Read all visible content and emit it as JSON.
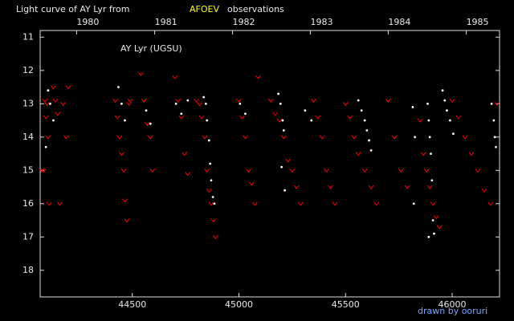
{
  "chart_data": {
    "type": "scatter",
    "title": "Light curve of AY Lyr from",
    "title_source": "AFOEV",
    "title_suffix": "observations",
    "annotation": "AY Lyr (UGSU)",
    "credit": "drawn by ooruri",
    "xlim": [
      44068,
      46222
    ],
    "ylim": [
      18.8,
      10.8
    ],
    "xticks": [
      44500,
      45000,
      45500,
      46000
    ],
    "yticks": [
      11,
      12,
      13,
      14,
      15,
      16,
      17,
      18
    ],
    "x2ticks": [
      {
        "value": 44239,
        "label": "1980"
      },
      {
        "value": 44605,
        "label": "1981"
      },
      {
        "value": 44970,
        "label": "1982"
      },
      {
        "value": 45335,
        "label": "1983"
      },
      {
        "value": 45700,
        "label": "1984"
      },
      {
        "value": 46066,
        "label": "1985"
      }
    ],
    "series": [
      {
        "color": "#ff0000",
        "marker": "v",
        "x": [
          44075,
          44085,
          44090,
          44095,
          44100,
          44105,
          44110,
          44130,
          44140,
          44150,
          44160,
          44175,
          44190,
          44200,
          44420,
          44430,
          44440,
          44450,
          44460,
          44465,
          44475,
          44485,
          44490,
          44540,
          44555,
          44570,
          44585,
          44595,
          44700,
          44715,
          44730,
          44745,
          44760,
          44800,
          44815,
          44825,
          44840,
          44850,
          44860,
          44870,
          44880,
          44890,
          45000,
          45015,
          45030,
          45045,
          45060,
          45075,
          45090,
          45150,
          45170,
          45190,
          45210,
          45230,
          45250,
          45270,
          45290,
          45350,
          45370,
          45390,
          45410,
          45430,
          45450,
          45500,
          45520,
          45540,
          45560,
          45590,
          45620,
          45645,
          45700,
          45730,
          45760,
          45790,
          45850,
          45865,
          45880,
          45895,
          45910,
          45925,
          45940,
          46000,
          46030,
          46060,
          46090,
          46120,
          46150,
          46180,
          46210
        ],
        "values": [
          15.0,
          15.0,
          12.9,
          13.4,
          13.0,
          14.0,
          16.0,
          12.5,
          12.9,
          13.3,
          16.0,
          13.0,
          14.0,
          12.5,
          12.9,
          13.4,
          14.0,
          14.5,
          15.0,
          15.9,
          16.5,
          13.0,
          12.9,
          12.1,
          12.9,
          13.6,
          14.0,
          15.0,
          12.2,
          12.9,
          13.4,
          14.5,
          15.1,
          12.9,
          13.0,
          13.4,
          14.0,
          15.0,
          15.6,
          16.0,
          16.5,
          17.0,
          12.9,
          13.4,
          14.0,
          15.0,
          15.4,
          16.0,
          12.2,
          12.9,
          13.3,
          13.5,
          14.0,
          14.7,
          15.0,
          15.5,
          16.0,
          12.9,
          13.4,
          14.0,
          15.0,
          15.5,
          16.0,
          13.0,
          13.4,
          14.0,
          14.5,
          15.0,
          15.5,
          16.0,
          12.9,
          14.0,
          15.0,
          15.5,
          13.5,
          14.5,
          15.0,
          15.5,
          16.0,
          16.4,
          16.7,
          12.9,
          13.4,
          14.0,
          14.5,
          15.0,
          15.6,
          16.0,
          13.0
        ]
      },
      {
        "color": "#ffffff",
        "marker": "dot",
        "x": [
          44105,
          44115,
          44130,
          44095,
          44435,
          44450,
          44465,
          44565,
          44585,
          44705,
          44730,
          44760,
          44835,
          44845,
          44850,
          44860,
          44865,
          44870,
          44878,
          44885,
          45005,
          45030,
          45185,
          45195,
          45205,
          45210,
          45200,
          45215,
          45310,
          45340,
          45560,
          45575,
          45590,
          45600,
          45610,
          45620,
          45815,
          45825,
          45820,
          45885,
          45890,
          45895,
          45900,
          45905,
          45910,
          45890,
          45915,
          45955,
          45965,
          45975,
          45990,
          46005,
          46185,
          46195,
          46200,
          46205
        ],
        "values": [
          12.6,
          13.0,
          13.5,
          14.3,
          12.5,
          13.0,
          13.5,
          13.2,
          13.6,
          13.0,
          13.3,
          12.9,
          12.8,
          13.0,
          13.5,
          14.1,
          14.8,
          15.3,
          15.8,
          16.0,
          13.0,
          13.3,
          12.7,
          13.0,
          13.5,
          13.8,
          14.9,
          15.6,
          13.2,
          13.5,
          12.9,
          13.2,
          13.5,
          13.8,
          14.1,
          14.4,
          13.1,
          14.0,
          16.0,
          13.0,
          13.5,
          14.0,
          14.5,
          15.3,
          16.5,
          17.0,
          16.9,
          12.6,
          12.9,
          13.2,
          13.5,
          13.9,
          13.0,
          13.5,
          14.0,
          14.3
        ]
      }
    ]
  }
}
